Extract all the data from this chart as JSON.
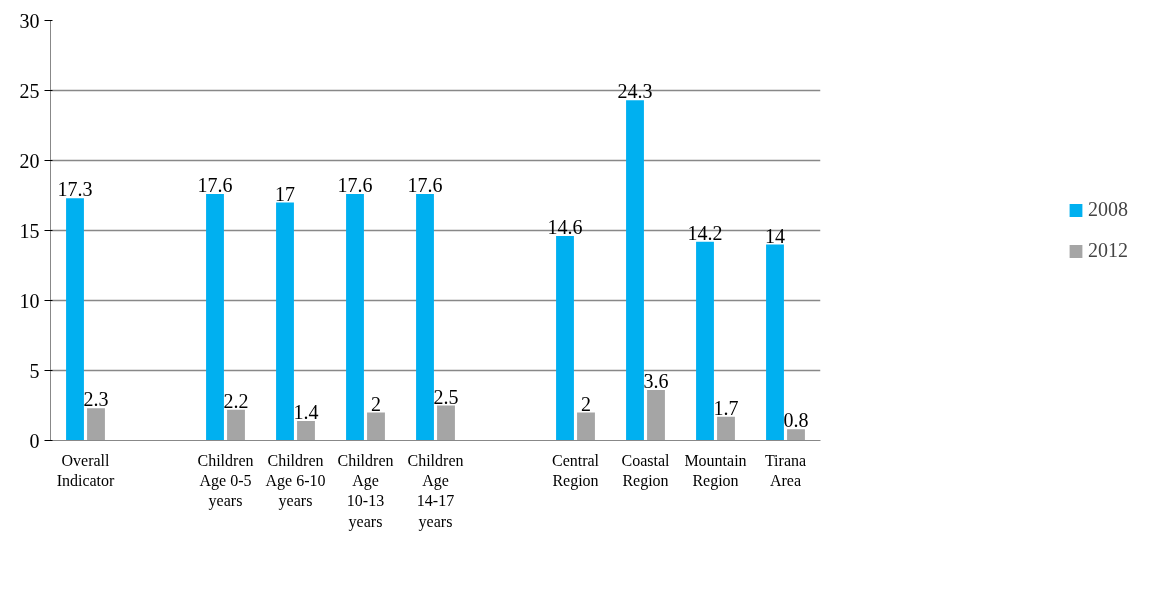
{
  "chart_data": {
    "type": "bar",
    "categories": [
      "Overall Indicator",
      null,
      "Children Age 0-5 years",
      "Children Age 6-10 years",
      "Children Age 10-13 years",
      "Children Age 14-17 years",
      null,
      "Central Region",
      "Coastal Region",
      "Mountain Region",
      "Tirana Area"
    ],
    "series": [
      {
        "name": "2008",
        "color": "#00b0f0",
        "values": [
          17.3,
          null,
          17.6,
          17,
          17.6,
          17.6,
          null,
          14.6,
          24.3,
          14.2,
          14
        ]
      },
      {
        "name": "2012",
        "color": "#a5a5a5",
        "values": [
          2.3,
          null,
          2.2,
          1.4,
          2,
          2.5,
          null,
          2,
          3.6,
          1.7,
          0.8
        ]
      }
    ],
    "ylim": [
      0,
      30
    ],
    "yticks": [
      0,
      5,
      10,
      15,
      20,
      25,
      30
    ],
    "grid": "y",
    "legend": "right",
    "data_labels": true
  }
}
